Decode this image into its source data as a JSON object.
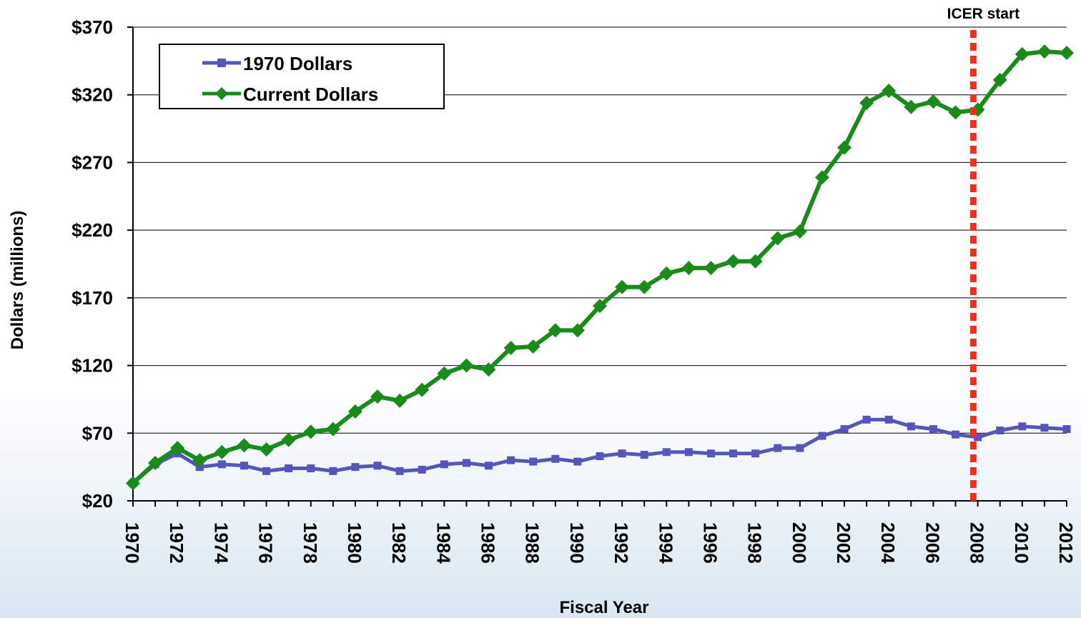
{
  "chart_data": {
    "type": "line",
    "xlabel": "Fiscal Year",
    "ylabel": "Dollars (millions)",
    "ylim": [
      20,
      370
    ],
    "xlim": [
      1970,
      2012
    ],
    "y_ticks": [
      "$20",
      "$70",
      "$120",
      "$170",
      "$220",
      "$270",
      "$320",
      "$370"
    ],
    "y_tick_values": [
      20,
      70,
      120,
      170,
      220,
      270,
      320,
      370
    ],
    "x_ticks": [
      "1970",
      "1972",
      "1974",
      "1976",
      "1978",
      "1980",
      "1982",
      "1984",
      "1986",
      "1988",
      "1990",
      "1992",
      "1994",
      "1996",
      "1998",
      "2000",
      "2002",
      "2004",
      "2006",
      "2008",
      "2010",
      "2012"
    ],
    "grid": "horizontal",
    "legend_position": "top-left",
    "x": [
      1970,
      1971,
      1972,
      1973,
      1974,
      1975,
      1976,
      1977,
      1978,
      1979,
      1980,
      1981,
      1982,
      1983,
      1984,
      1985,
      1986,
      1987,
      1988,
      1989,
      1990,
      1991,
      1992,
      1993,
      1994,
      1995,
      1996,
      1997,
      1998,
      1999,
      2000,
      2001,
      2002,
      2003,
      2004,
      2005,
      2006,
      2007,
      2008,
      2009,
      2010,
      2011,
      2012
    ],
    "series": [
      {
        "name": "1970 Dollars",
        "color": "#5555bb",
        "marker": "square",
        "values": [
          33,
          47,
          55,
          45,
          47,
          46,
          42,
          44,
          44,
          42,
          45,
          46,
          42,
          43,
          47,
          48,
          46,
          50,
          49,
          51,
          49,
          53,
          55,
          54,
          56,
          56,
          55,
          55,
          55,
          59,
          59,
          68,
          73,
          80,
          80,
          75,
          73,
          69,
          67,
          72,
          75,
          74,
          73
        ]
      },
      {
        "name": "Current Dollars",
        "color": "#1a8a1a",
        "marker": "diamond",
        "values": [
          33,
          48,
          59,
          50,
          56,
          61,
          58,
          65,
          71,
          73,
          86,
          97,
          94,
          102,
          114,
          120,
          117,
          133,
          134,
          146,
          146,
          164,
          178,
          178,
          188,
          192,
          192,
          197,
          197,
          214,
          219,
          259,
          281,
          314,
          323,
          311,
          315,
          307,
          309,
          331,
          350,
          352,
          351
        ]
      }
    ],
    "annotations": [
      {
        "text": "ICER start",
        "x": 2007.8,
        "style": "dotted-vertical-line",
        "color": "#ff2a1a"
      }
    ]
  }
}
